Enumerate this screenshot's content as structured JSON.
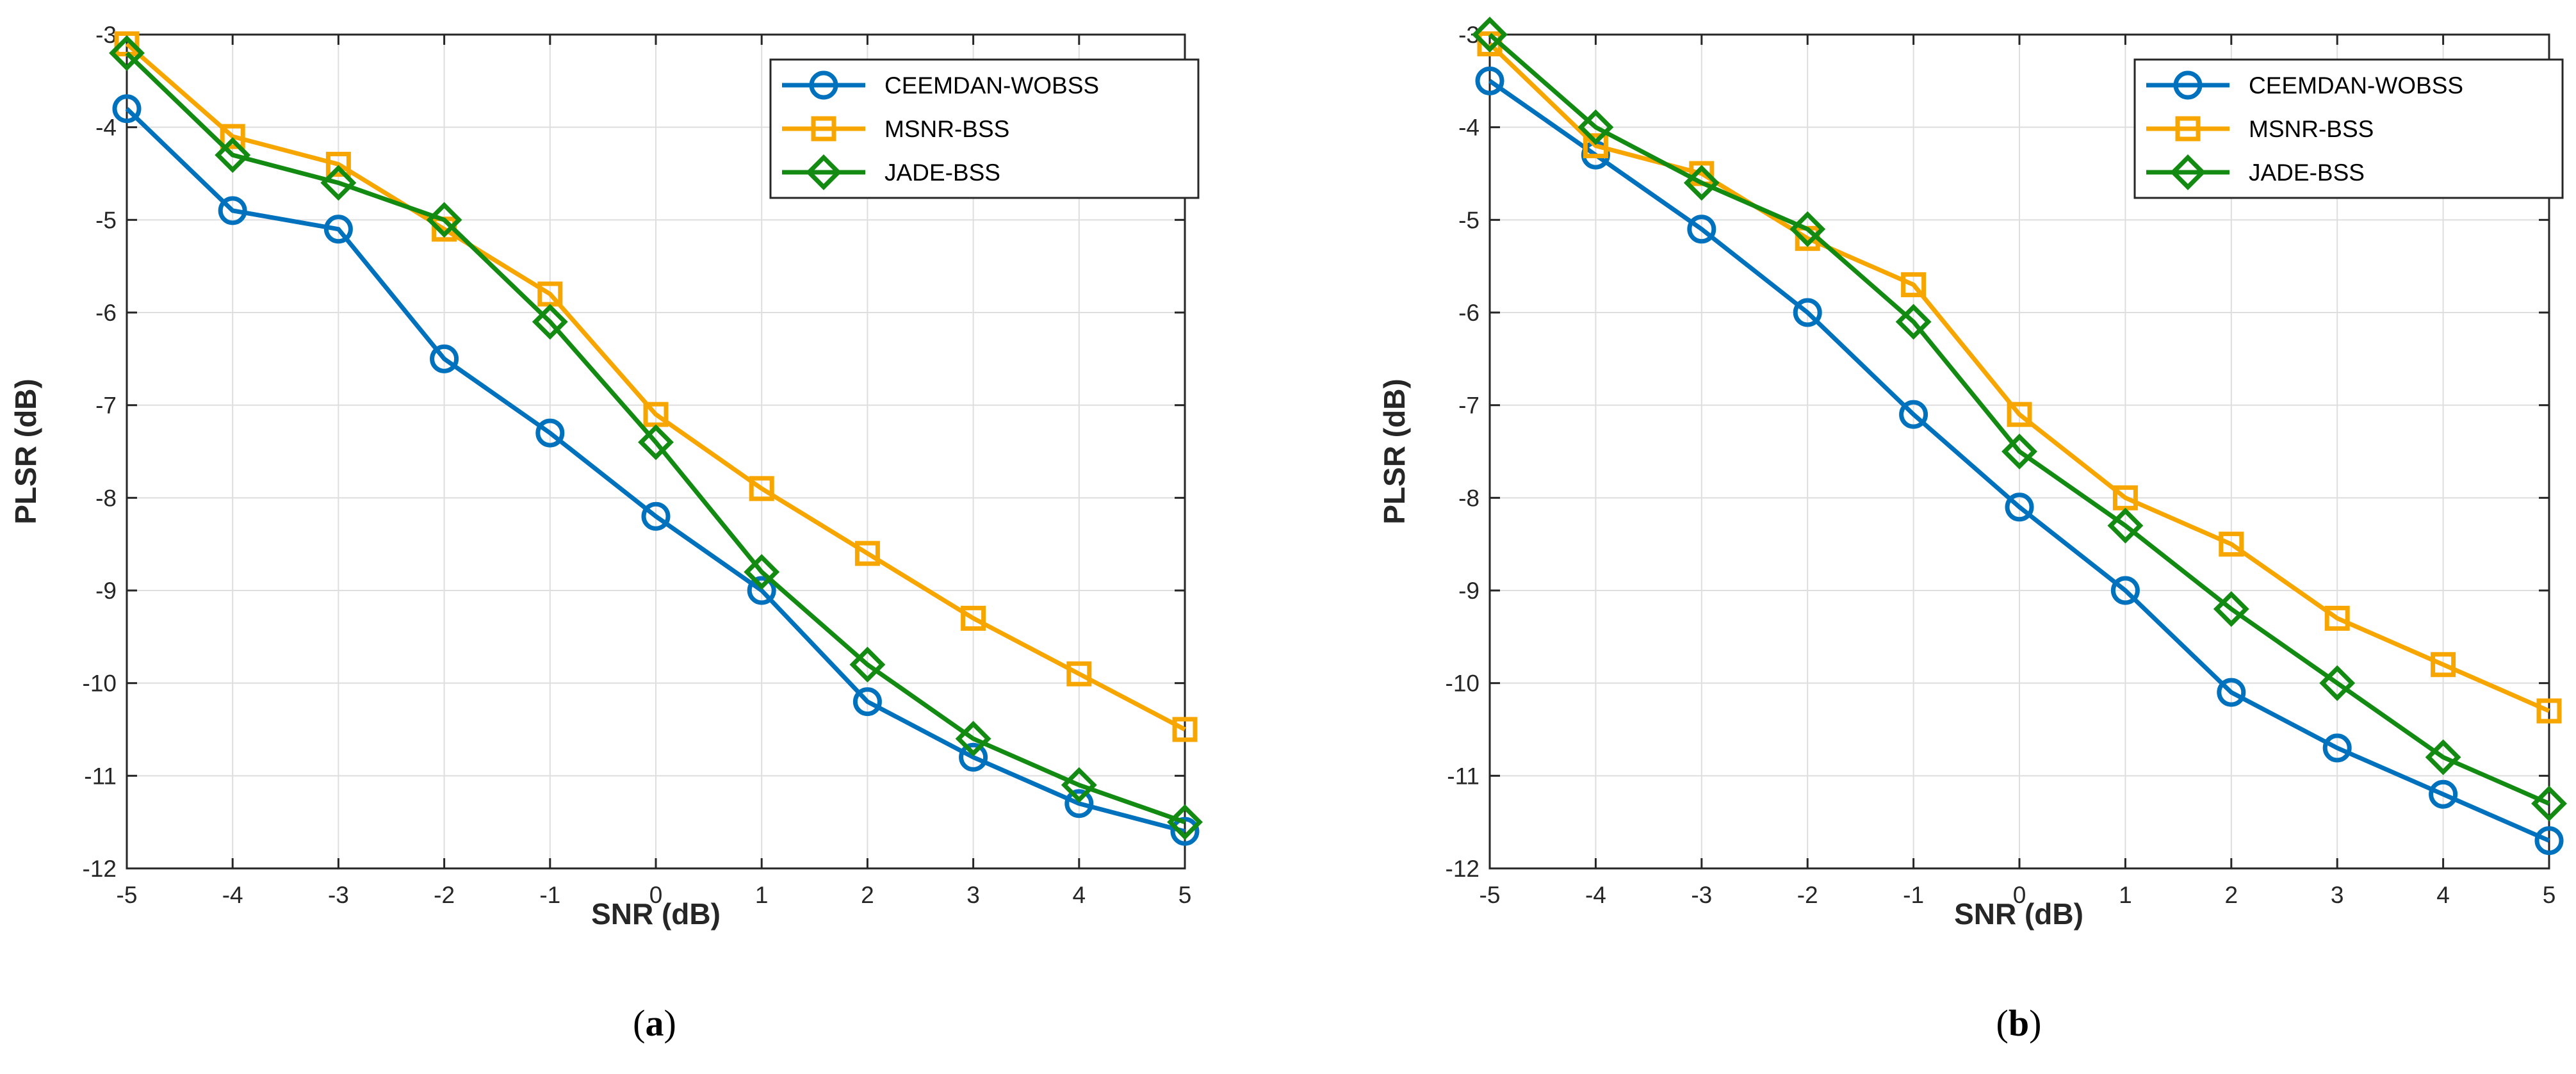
{
  "figure": {
    "panel_labels": [
      "(a)",
      "(b)"
    ]
  },
  "chart_data": [
    {
      "type": "line",
      "panel": "(a)",
      "title": "",
      "xlabel": "SNR (dB)",
      "ylabel": "PLSR (dB)",
      "xlim": [
        -5,
        5
      ],
      "ylim": [
        -12,
        -3
      ],
      "xticks": [
        -5,
        -4,
        -3,
        -2,
        -1,
        0,
        1,
        2,
        3,
        4,
        5
      ],
      "yticks": [
        -3,
        -4,
        -5,
        -6,
        -7,
        -8,
        -9,
        -10,
        -11,
        -12
      ],
      "grid": true,
      "legend_position": "top-right",
      "x": [
        -5,
        -4,
        -3,
        -2,
        -1,
        0,
        1,
        2,
        3,
        4,
        5
      ],
      "series": [
        {
          "name": "CEEMDAN-WOBSS",
          "marker": "circle",
          "color": "#0072BD",
          "values": [
            -3.8,
            -4.9,
            -5.1,
            -6.5,
            -7.3,
            -8.2,
            -9.0,
            -10.2,
            -10.8,
            -11.3,
            -11.6
          ]
        },
        {
          "name": "MSNR-BSS",
          "marker": "square",
          "color": "#F7A600",
          "values": [
            -3.1,
            -4.1,
            -4.4,
            -5.1,
            -5.8,
            -7.1,
            -7.9,
            -8.6,
            -9.3,
            -9.9,
            -10.5
          ]
        },
        {
          "name": "JADE-BSS",
          "marker": "diamond",
          "color": "#138B13",
          "values": [
            -3.2,
            -4.3,
            -4.6,
            -5.0,
            -6.1,
            -7.4,
            -8.8,
            -9.8,
            -10.6,
            -11.1,
            -11.5
          ]
        }
      ]
    },
    {
      "type": "line",
      "panel": "(b)",
      "title": "",
      "xlabel": "SNR (dB)",
      "ylabel": "PLSR (dB)",
      "xlim": [
        -5,
        5
      ],
      "ylim": [
        -12,
        -3
      ],
      "xticks": [
        -5,
        -4,
        -3,
        -2,
        -1,
        0,
        1,
        2,
        3,
        4,
        5
      ],
      "yticks": [
        -3,
        -4,
        -5,
        -6,
        -7,
        -8,
        -9,
        -10,
        -11,
        -12
      ],
      "grid": true,
      "legend_position": "top-right",
      "x": [
        -5,
        -4,
        -3,
        -2,
        -1,
        0,
        1,
        2,
        3,
        4,
        5
      ],
      "series": [
        {
          "name": "CEEMDAN-WOBSS",
          "marker": "circle",
          "color": "#0072BD",
          "values": [
            -3.5,
            -4.3,
            -5.1,
            -6.0,
            -7.1,
            -8.1,
            -9.0,
            -10.1,
            -10.7,
            -11.2,
            -11.7
          ]
        },
        {
          "name": "MSNR-BSS",
          "marker": "square",
          "color": "#F7A600",
          "values": [
            -3.1,
            -4.2,
            -4.5,
            -5.2,
            -5.7,
            -7.1,
            -8.0,
            -8.5,
            -9.3,
            -9.8,
            -10.3
          ]
        },
        {
          "name": "JADE-BSS",
          "marker": "diamond",
          "color": "#138B13",
          "values": [
            -3.0,
            -4.0,
            -4.6,
            -5.1,
            -6.1,
            -7.5,
            -8.3,
            -9.2,
            -10.0,
            -10.8,
            -11.3
          ]
        }
      ]
    }
  ]
}
